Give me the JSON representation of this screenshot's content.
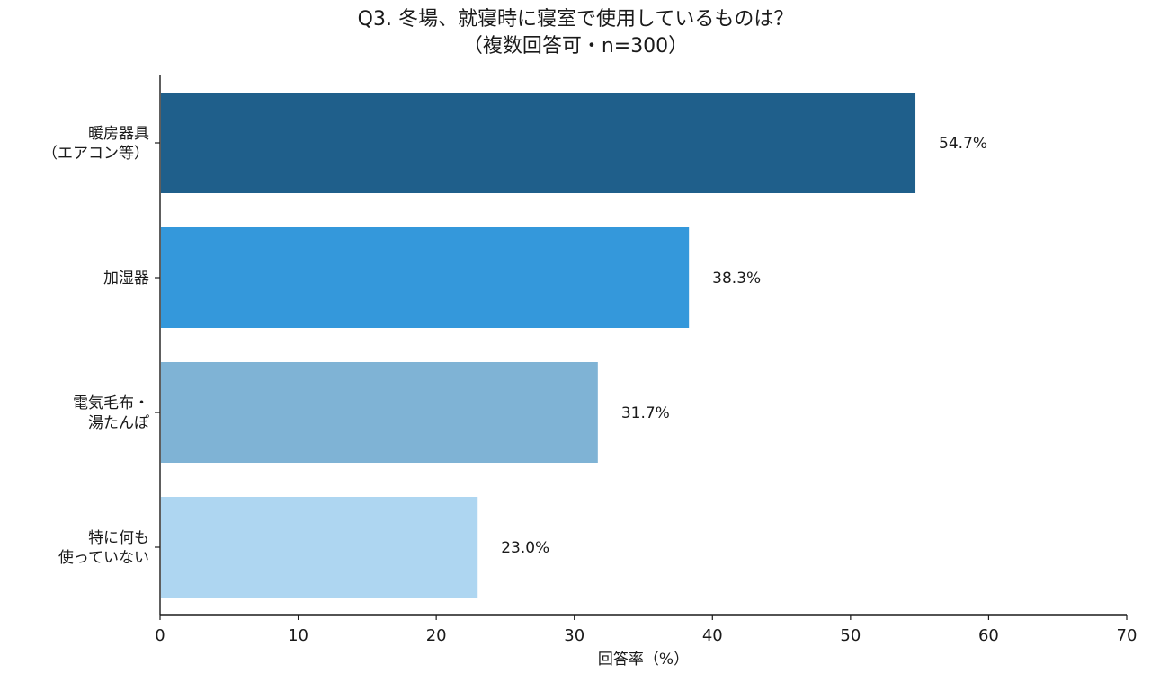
{
  "chart_data": {
    "type": "bar",
    "orientation": "horizontal",
    "title_line1": "Q3. 冬場、就寝時に寝室で使用しているものは？",
    "title_line2": "（複数回答可・n=300）",
    "xlabel": "回答率（%）",
    "ylabel": "",
    "xlim": [
      0,
      70
    ],
    "xticks": [
      0,
      10,
      20,
      30,
      40,
      50,
      60,
      70
    ],
    "grid": false,
    "categories": [
      [
        "暖房器具",
        "（エアコン等）"
      ],
      [
        "加湿器"
      ],
      [
        "電気毛布・",
        "湯たんぽ"
      ],
      [
        "特に何も",
        "使っていない"
      ]
    ],
    "values": [
      54.7,
      38.3,
      31.7,
      23.0
    ],
    "value_labels": [
      "54.7%",
      "38.3%",
      "31.7%",
      "23.0%"
    ],
    "colors": [
      "#1f5f8b",
      "#3498db",
      "#7fb3d5",
      "#aed6f1"
    ]
  }
}
